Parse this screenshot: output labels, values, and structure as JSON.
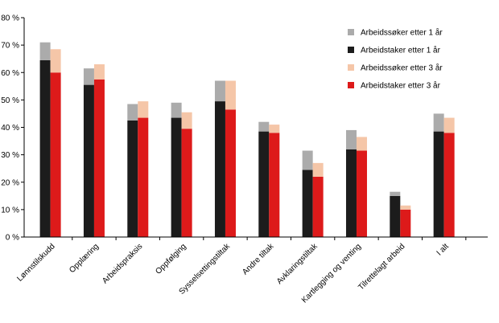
{
  "chart_data": {
    "type": "bar",
    "title": "",
    "xlabel": "",
    "ylabel": "",
    "ylim": [
      0,
      80
    ],
    "yticks": [
      "0 %",
      "10 %",
      "20 %",
      "30 %",
      "40 %",
      "50 %",
      "60 %",
      "70 %",
      "80 %"
    ],
    "grid": false,
    "legend_position": "top-right",
    "categories": [
      "Lønnstilskudd",
      "Opplæring",
      "Arbeidspraksis",
      "Oppfølging",
      "Sysselsettingstiltak",
      "Andre tiltak",
      "Avklaringstiltak",
      "Kartlegging og venting",
      "Tilrettelagt arbeid",
      "I alt"
    ],
    "series": [
      {
        "name": "Arbeidssøker etter 1 år",
        "color": "#ababab",
        "values": [
          6.5,
          6,
          6,
          5.5,
          7.5,
          3.5,
          7,
          7,
          1.5,
          6.5
        ]
      },
      {
        "name": "Arbeidstaker etter 1 år",
        "color": "#1c1c1c",
        "values": [
          64.5,
          55.5,
          42.5,
          43.5,
          49.5,
          38.5,
          24.5,
          32,
          15,
          38.5
        ]
      },
      {
        "name": "Arbeidssøker etter 3 år",
        "color": "#f5c6a8",
        "values": [
          8.5,
          5.5,
          6,
          6,
          10.5,
          3,
          5,
          5,
          1.5,
          5.5
        ]
      },
      {
        "name": "Arbeidstaker etter 3 år",
        "color": "#dd1a1a",
        "values": [
          60,
          57.5,
          43.5,
          39.5,
          46.5,
          38,
          22,
          31.5,
          10,
          38
        ]
      }
    ]
  }
}
